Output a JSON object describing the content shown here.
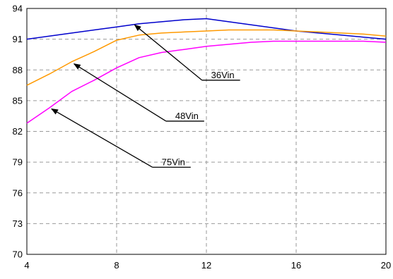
{
  "chart_data": {
    "type": "line",
    "xlabel": "",
    "ylabel": "",
    "xlim": [
      4,
      20
    ],
    "ylim": [
      70,
      94
    ],
    "xticks": [
      4,
      8,
      12,
      16,
      20
    ],
    "yticks": [
      70,
      73,
      76,
      79,
      82,
      85,
      88,
      91,
      94
    ],
    "grid": true,
    "series": [
      {
        "name": "36Vin",
        "color": "#0000cc",
        "x": [
          4,
          5,
          6,
          7,
          8,
          9,
          10,
          11,
          12,
          13,
          14,
          15,
          16,
          17,
          18,
          19,
          20
        ],
        "y": [
          91.0,
          91.3,
          91.6,
          91.9,
          92.2,
          92.5,
          92.7,
          92.9,
          93.0,
          92.7,
          92.4,
          92.1,
          91.8,
          91.6,
          91.4,
          91.2,
          91.0
        ]
      },
      {
        "name": "48Vin",
        "color": "#ff9900",
        "x": [
          4,
          5,
          6,
          7,
          8,
          9,
          10,
          11,
          12,
          13,
          14,
          15,
          16,
          17,
          18,
          19,
          20
        ],
        "y": [
          86.5,
          87.6,
          88.8,
          89.8,
          90.9,
          91.4,
          91.6,
          91.7,
          91.8,
          91.9,
          91.9,
          91.9,
          91.8,
          91.7,
          91.6,
          91.5,
          91.3
        ]
      },
      {
        "name": "75Vin",
        "color": "#ff00ff",
        "x": [
          4,
          5,
          6,
          7,
          8,
          9,
          10,
          11,
          12,
          13,
          14,
          15,
          16,
          17,
          18,
          19,
          20
        ],
        "y": [
          82.8,
          84.3,
          85.9,
          87.0,
          88.2,
          89.2,
          89.7,
          90.0,
          90.3,
          90.5,
          90.7,
          90.8,
          90.8,
          90.8,
          90.8,
          90.8,
          90.7
        ]
      }
    ],
    "annotations": [
      {
        "text": "36Vin",
        "target_x": 8.8,
        "target_y": 92.4,
        "label_x": 11.8,
        "label_y": 87.0
      },
      {
        "text": "48Vin",
        "target_x": 6.1,
        "target_y": 88.6,
        "label_x": 10.2,
        "label_y": 83.0
      },
      {
        "text": "75Vin",
        "target_x": 5.1,
        "target_y": 84.2,
        "label_x": 9.6,
        "label_y": 78.5
      }
    ]
  }
}
